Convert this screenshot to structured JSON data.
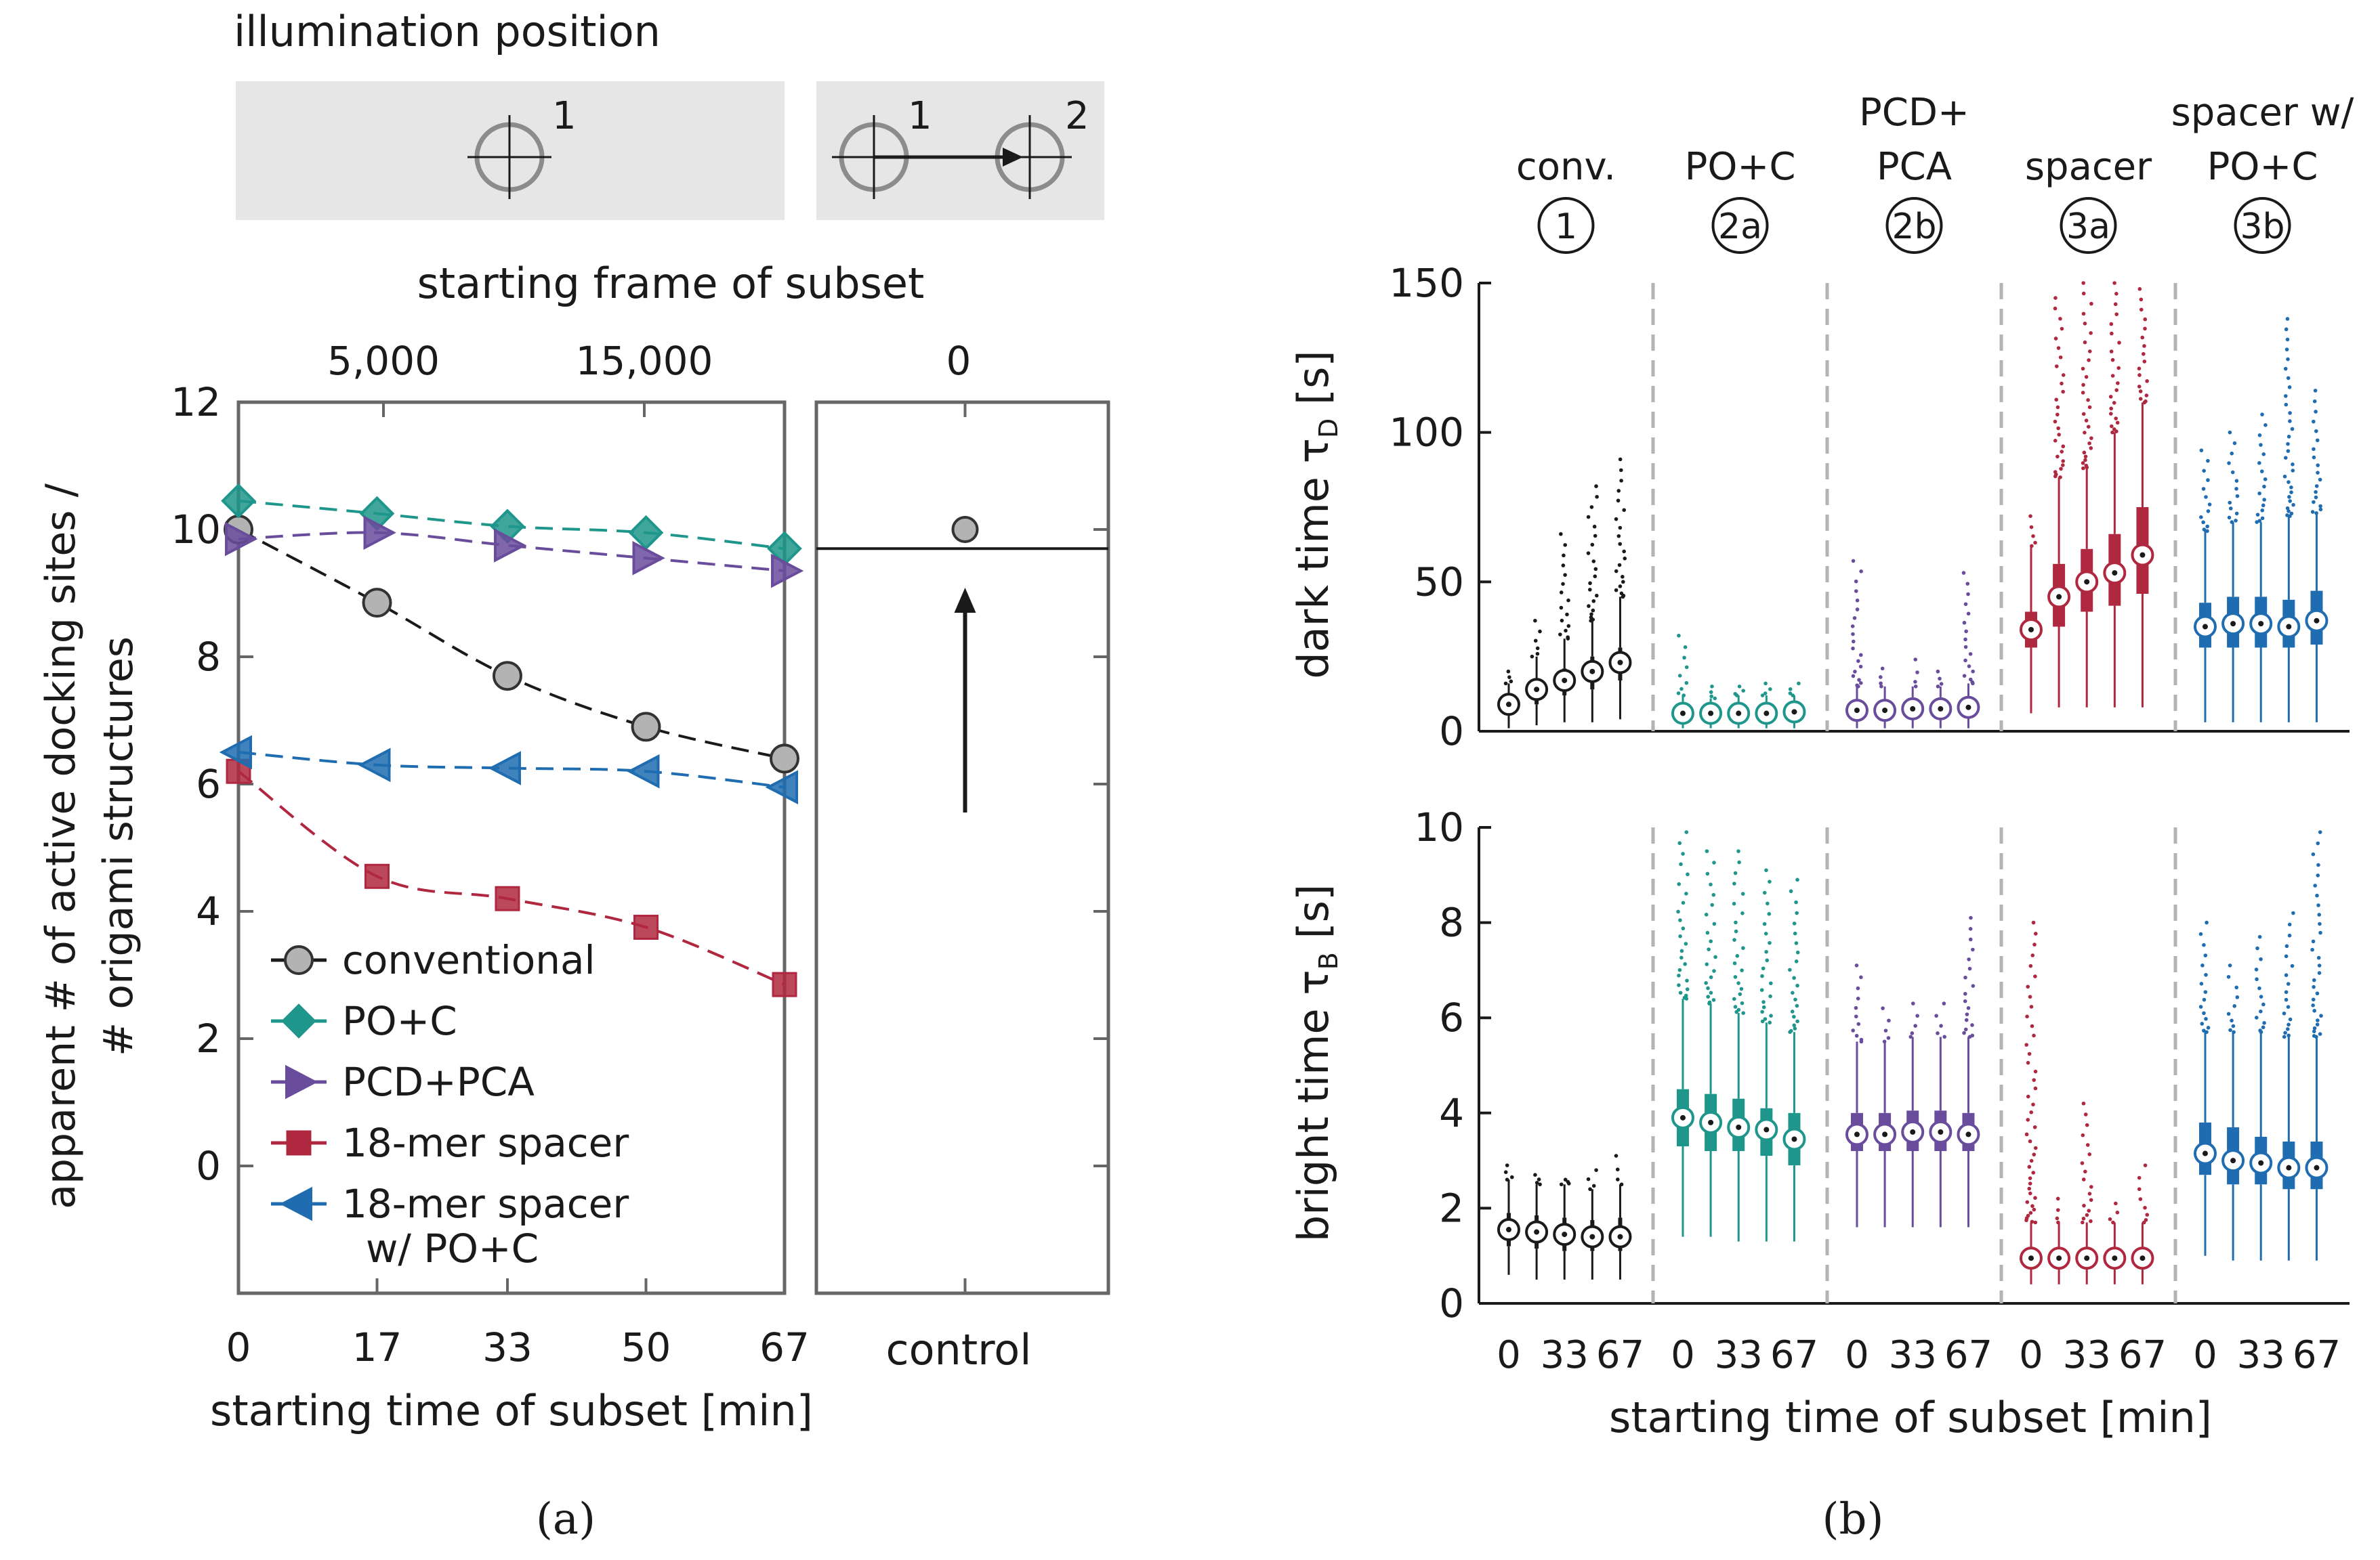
{
  "colors": {
    "conventional": "#1a1a1a",
    "po_c": "#1f968b",
    "pcd_pca": "#6a4c9c",
    "spacer": "#b0283f",
    "spacer_po_c": "#1f6db0",
    "marker_gray": "#b3b3b3",
    "panel_gray": "#e6e6e6",
    "circle_gray": "#8c8c8c",
    "divider_gray": "#b3b3b3"
  },
  "illumination": {
    "title": "illumination position",
    "label_1": "1",
    "label_1b": "1",
    "label_2": "2"
  },
  "panel_a": {
    "label": "(a)",
    "top_axis_title": "starting frame of subset",
    "top_ticks": [
      "5,000",
      "15,000"
    ],
    "control_top_tick": "0",
    "ylabel_line1": "apparent # of active docking sites /",
    "ylabel_line2": "# origami structures",
    "xlabel": "starting time of subset [min]",
    "control_label": "control"
  },
  "panel_b": {
    "label": "(b)",
    "xlabel": "starting time of subset [min]",
    "dark_ylabel": "dark time τ",
    "dark_ysub": "D",
    "dark_yunit": " [s]",
    "bright_ylabel": "bright time τ",
    "bright_ysub": "B",
    "bright_yunit": " [s]",
    "groups": [
      {
        "title_lines": [
          "conv."
        ],
        "circle": "1",
        "color_key": "conventional"
      },
      {
        "title_lines": [
          "PO+C"
        ],
        "circle": "2a",
        "color_key": "po_c"
      },
      {
        "title_lines": [
          "PCD+",
          "PCA"
        ],
        "circle": "2b",
        "color_key": "pcd_pca"
      },
      {
        "title_lines": [
          "spacer"
        ],
        "circle": "3a",
        "color_key": "spacer"
      },
      {
        "title_lines": [
          "spacer w/",
          "PO+C"
        ],
        "circle": "3b",
        "color_key": "spacer_po_c"
      }
    ],
    "group_xticks": [
      "0",
      "33",
      "67"
    ]
  },
  "chart_data": [
    {
      "type": "line",
      "title": "",
      "xlabel": "starting time of subset [min]",
      "ylabel": "apparent # of active docking sites / # origami structures",
      "x": [
        0,
        17,
        33,
        50,
        67
      ],
      "x_ticks": [
        "0",
        "17",
        "33",
        "50",
        "67"
      ],
      "xlim": [
        0,
        67
      ],
      "ylim": [
        -2,
        12
      ],
      "y_ticks": [
        0,
        2,
        4,
        6,
        8,
        10,
        12
      ],
      "secondary_x_axis": {
        "title": "starting frame of subset",
        "ticks": [
          "5,000",
          "15,000"
        ]
      },
      "legend_position": "bottom-left",
      "series": [
        {
          "name": "conventional",
          "marker": "circle",
          "color_key": "conventional",
          "values": [
            10.0,
            8.85,
            7.7,
            6.9,
            6.4
          ]
        },
        {
          "name": "PO+C",
          "marker": "diamond",
          "color_key": "po_c",
          "values": [
            10.45,
            10.25,
            10.05,
            9.95,
            9.7
          ]
        },
        {
          "name": "PCD+PCA",
          "marker": "triangle-right",
          "color_key": "pcd_pca",
          "values": [
            9.85,
            9.95,
            9.75,
            9.55,
            9.35
          ]
        },
        {
          "name": "18-mer spacer",
          "marker": "square",
          "color_key": "spacer",
          "values": [
            6.2,
            4.55,
            4.2,
            3.75,
            2.85
          ]
        },
        {
          "name": "18-mer spacer\nw/ PO+C",
          "marker": "triangle-left",
          "color_key": "spacer_po_c",
          "values": [
            6.5,
            6.3,
            6.25,
            6.2,
            5.95
          ]
        }
      ]
    },
    {
      "type": "scatter",
      "title": "",
      "xlabel": "control",
      "top_tick": "0",
      "ylim": [
        -2,
        12
      ],
      "points": [
        {
          "x": "control",
          "y": 10.0
        }
      ],
      "reference_line_y": 9.7
    },
    {
      "type": "box",
      "title": "",
      "ylabel": "dark time τD [s]",
      "ylim": [
        0,
        150
      ],
      "y_ticks": [
        0,
        50,
        100,
        150
      ],
      "x": [
        0,
        17,
        33,
        50,
        67
      ],
      "x_ticks": [
        "0",
        "33",
        "67"
      ],
      "groups": [
        {
          "name": "conv.",
          "color_key": "conventional",
          "median": [
            9,
            14,
            17,
            20,
            23
          ],
          "q1": [
            6,
            9,
            12,
            14,
            17
          ],
          "q3": [
            11,
            17,
            21,
            25,
            28
          ],
          "wlo": [
            1,
            2,
            3,
            3,
            4
          ],
          "whi": [
            16,
            25,
            31,
            37,
            45
          ],
          "outlier_max": [
            20,
            37,
            66,
            82,
            91
          ]
        },
        {
          "name": "PO+C",
          "color_key": "po_c",
          "median": [
            6,
            6,
            6,
            6,
            6.5
          ],
          "q1": [
            4,
            4,
            4,
            4,
            4
          ],
          "q3": [
            8,
            8,
            8,
            8,
            8.5
          ],
          "wlo": [
            1,
            1,
            1,
            1,
            1
          ],
          "whi": [
            12,
            11,
            12,
            12,
            12
          ],
          "outlier_max": [
            32,
            15,
            15,
            16,
            16
          ]
        },
        {
          "name": "PCD+PCA",
          "color_key": "pcd_pca",
          "median": [
            7,
            7,
            7.5,
            7.5,
            8
          ],
          "q1": [
            5,
            5,
            5,
            5,
            5
          ],
          "q3": [
            10,
            10,
            10,
            10,
            11
          ],
          "wlo": [
            1,
            1,
            1,
            1,
            1
          ],
          "whi": [
            15,
            15,
            15,
            15,
            16
          ],
          "outlier_max": [
            57,
            21,
            24,
            20,
            53
          ]
        },
        {
          "name": "spacer",
          "color_key": "spacer",
          "median": [
            34,
            45,
            50,
            53,
            59
          ],
          "q1": [
            28,
            35,
            40,
            42,
            46
          ],
          "q3": [
            40,
            56,
            61,
            66,
            75
          ],
          "wlo": [
            6,
            8,
            8,
            8,
            8
          ],
          "whi": [
            62,
            85,
            88,
            100,
            110
          ],
          "outlier_max": [
            72,
            145,
            150,
            150,
            148
          ]
        },
        {
          "name": "spacer w/ PO+C",
          "color_key": "spacer_po_c",
          "median": [
            35,
            36,
            36,
            35,
            37
          ],
          "q1": [
            28,
            28,
            28,
            28,
            29
          ],
          "q3": [
            43,
            45,
            45,
            44,
            47
          ],
          "wlo": [
            3,
            3,
            3,
            3,
            3
          ],
          "whi": [
            67,
            70,
            70,
            72,
            73
          ],
          "outlier_max": [
            94,
            100,
            106,
            138,
            114
          ]
        }
      ]
    },
    {
      "type": "box",
      "title": "",
      "ylabel": "bright time τB [s]",
      "ylim": [
        0,
        10
      ],
      "y_ticks": [
        0,
        2,
        4,
        6,
        8,
        10
      ],
      "x": [
        0,
        17,
        33,
        50,
        67
      ],
      "x_ticks": [
        "0",
        "33",
        "67"
      ],
      "groups": [
        {
          "name": "conv.",
          "color_key": "conventional",
          "median": [
            1.55,
            1.5,
            1.45,
            1.4,
            1.4
          ],
          "q1": [
            1.2,
            1.15,
            1.1,
            1.1,
            1.1
          ],
          "q3": [
            1.9,
            1.85,
            1.8,
            1.75,
            1.8
          ],
          "wlo": [
            0.6,
            0.5,
            0.5,
            0.5,
            0.5
          ],
          "whi": [
            2.6,
            2.5,
            2.5,
            2.4,
            2.5
          ],
          "outlier_max": [
            2.9,
            2.7,
            2.6,
            2.8,
            3.1
          ]
        },
        {
          "name": "PO+C",
          "color_key": "po_c",
          "median": [
            3.9,
            3.8,
            3.7,
            3.65,
            3.45
          ],
          "q1": [
            3.3,
            3.2,
            3.2,
            3.1,
            2.9
          ],
          "q3": [
            4.5,
            4.4,
            4.3,
            4.1,
            4.0
          ],
          "wlo": [
            1.4,
            1.4,
            1.3,
            1.3,
            1.3
          ],
          "whi": [
            6.4,
            6.3,
            6.1,
            5.9,
            5.7
          ],
          "outlier_max": [
            9.9,
            9.5,
            9.5,
            9.1,
            8.9
          ]
        },
        {
          "name": "PCD+PCA",
          "color_key": "pcd_pca",
          "median": [
            3.55,
            3.55,
            3.6,
            3.6,
            3.55
          ],
          "q1": [
            3.2,
            3.2,
            3.2,
            3.2,
            3.2
          ],
          "q3": [
            4.0,
            4.0,
            4.05,
            4.05,
            4.0
          ],
          "wlo": [
            1.6,
            1.6,
            1.6,
            1.6,
            1.6
          ],
          "whi": [
            5.5,
            5.5,
            5.6,
            5.6,
            5.6
          ],
          "outlier_max": [
            7.1,
            6.2,
            6.3,
            6.3,
            8.1
          ]
        },
        {
          "name": "spacer",
          "color_key": "spacer",
          "median": [
            0.95,
            0.95,
            0.95,
            0.95,
            0.95
          ],
          "q1": [
            0.8,
            0.8,
            0.8,
            0.8,
            0.8
          ],
          "q3": [
            1.1,
            1.1,
            1.1,
            1.1,
            1.1
          ],
          "wlo": [
            0.4,
            0.4,
            0.4,
            0.4,
            0.4
          ],
          "whi": [
            1.7,
            1.7,
            1.7,
            1.7,
            1.7
          ],
          "outlier_max": [
            8.0,
            2.2,
            4.2,
            2.1,
            2.9
          ]
        },
        {
          "name": "spacer w/ PO+C",
          "color_key": "spacer_po_c",
          "median": [
            3.15,
            3.0,
            2.95,
            2.85,
            2.85
          ],
          "q1": [
            2.7,
            2.5,
            2.5,
            2.4,
            2.4
          ],
          "q3": [
            3.8,
            3.7,
            3.5,
            3.4,
            3.4
          ],
          "wlo": [
            1.0,
            0.9,
            0.9,
            0.9,
            0.9
          ],
          "whi": [
            5.7,
            5.7,
            5.7,
            5.6,
            5.6
          ],
          "outlier_max": [
            8.0,
            7.1,
            7.7,
            8.2,
            9.9
          ]
        }
      ]
    }
  ]
}
